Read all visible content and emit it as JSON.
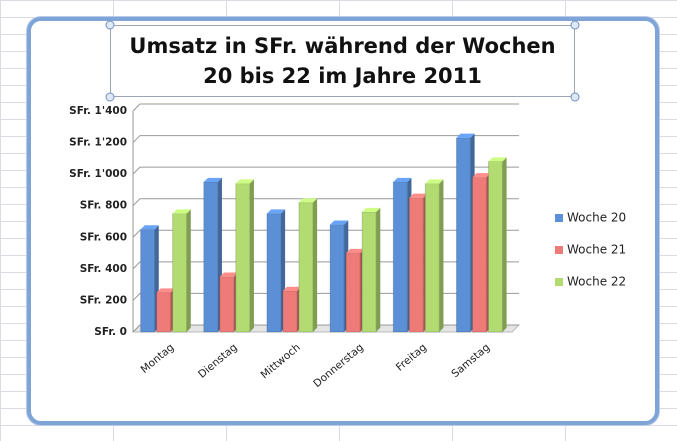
{
  "chart_data": {
    "type": "bar3d",
    "title": "Umsatz in SFr. während der Wochen 20 bis 22 im Jahre 2011",
    "categories": [
      "Montag",
      "Dienstag",
      "Mittwoch",
      "Donnerstag",
      "Freitag",
      "Samstag"
    ],
    "series": [
      {
        "name": "Woche 20",
        "color": "#5b8fd6",
        "values": [
          650,
          950,
          750,
          680,
          950,
          1230
        ]
      },
      {
        "name": "Woche 21",
        "color": "#ee7b78",
        "values": [
          250,
          350,
          260,
          500,
          850,
          980
        ]
      },
      {
        "name": "Woche 22",
        "color": "#b2dc72",
        "values": [
          750,
          940,
          820,
          760,
          940,
          1080
        ]
      }
    ],
    "ylim": [
      0,
      1400
    ],
    "yticks": [
      {
        "value": 0,
        "label": "SFr. 0"
      },
      {
        "value": 200,
        "label": "SFr. 200"
      },
      {
        "value": 400,
        "label": "SFr. 400"
      },
      {
        "value": 600,
        "label": "SFr. 600"
      },
      {
        "value": 800,
        "label": "SFr. 800"
      },
      {
        "value": 1000,
        "label": "SFr. 1'000"
      },
      {
        "value": 1200,
        "label": "SFr. 1'200"
      },
      {
        "value": 1400,
        "label": "SFr. 1'400"
      }
    ],
    "grid": true,
    "legend": "right"
  }
}
